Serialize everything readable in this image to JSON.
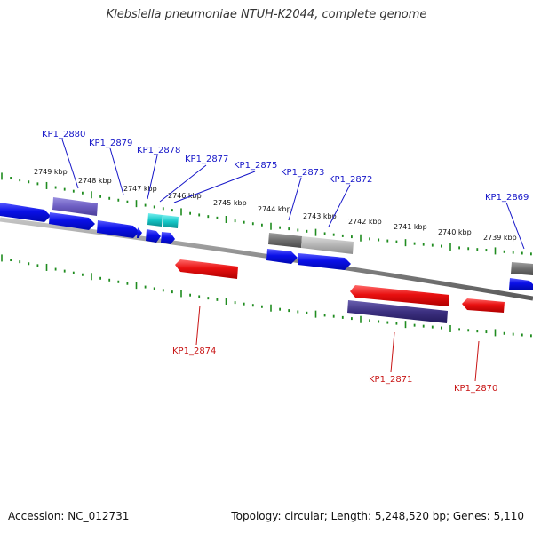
{
  "title": "Klebsiella pneumoniae NTUH-K2044, complete genome",
  "footer": {
    "accession": "Accession: NC_012731",
    "summary": "Topology: circular; Length: 5,248,520 bp; Genes: 5,110"
  },
  "colors": {
    "forward_cds": "#0a10e8",
    "reverse_cds": "#e81010",
    "track_purple": "#6d5ec2",
    "track_navy": "#3c3080",
    "track_cyan": "#15c7c7",
    "track_gray": "#6e6e6e",
    "track_lightgray": "#b4b4b4",
    "backbone": "#8a8a8a",
    "ticks": "#1f8c1f",
    "forward_label": "#1515c8",
    "reverse_label": "#c81515"
  },
  "kbp_ticks": [
    "2749 kbp",
    "2748 kbp",
    "2747 kbp",
    "2746 kbp",
    "2745 kbp",
    "2744 kbp",
    "2743 kbp",
    "2742 kbp",
    "2741 kbp",
    "2740 kbp",
    "2739 kbp"
  ],
  "forward_labels": [
    "KP1_2880",
    "KP1_2879",
    "KP1_2878",
    "KP1_2877",
    "KP1_2875",
    "KP1_2873",
    "KP1_2872",
    "KP1_2869"
  ],
  "reverse_labels": [
    "KP1_2874",
    "KP1_2871",
    "KP1_2870"
  ]
}
